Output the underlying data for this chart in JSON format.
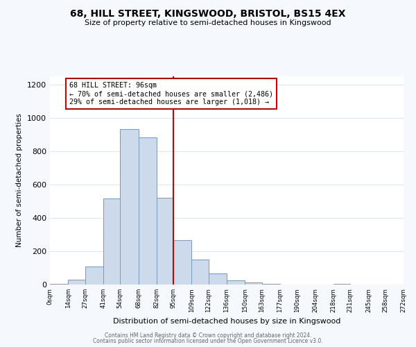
{
  "title": "68, HILL STREET, KINGSWOOD, BRISTOL, BS15 4EX",
  "subtitle": "Size of property relative to semi-detached houses in Kingswood",
  "xlabel": "Distribution of semi-detached houses by size in Kingswood",
  "ylabel": "Number of semi-detached properties",
  "bin_labels": [
    "0sqm",
    "14sqm",
    "27sqm",
    "41sqm",
    "54sqm",
    "68sqm",
    "82sqm",
    "95sqm",
    "109sqm",
    "122sqm",
    "136sqm",
    "150sqm",
    "163sqm",
    "177sqm",
    "190sqm",
    "204sqm",
    "218sqm",
    "231sqm",
    "245sqm",
    "258sqm",
    "272sqm"
  ],
  "bin_edges": [
    0,
    14,
    27,
    41,
    54,
    68,
    82,
    95,
    109,
    122,
    136,
    150,
    163,
    177,
    190,
    204,
    218,
    231,
    245,
    258,
    272
  ],
  "bar_heights": [
    5,
    30,
    110,
    515,
    935,
    885,
    520,
    265,
    150,
    68,
    27,
    12,
    5,
    0,
    0,
    0,
    5,
    0,
    0,
    0
  ],
  "bar_color": "#ccdaeb",
  "bar_edgecolor": "#7799bb",
  "vline_x": 95,
  "vline_color": "#cc0000",
  "annotation_title": "68 HILL STREET: 96sqm",
  "annotation_line1": "← 70% of semi-detached houses are smaller (2,486)",
  "annotation_line2": "29% of semi-detached houses are larger (1,018) →",
  "annotation_box_color": "#cc0000",
  "ylim": [
    0,
    1250
  ],
  "yticks": [
    0,
    200,
    400,
    600,
    800,
    1000,
    1200
  ],
  "footer1": "Contains HM Land Registry data © Crown copyright and database right 2024.",
  "footer2": "Contains public sector information licensed under the Open Government Licence v3.0.",
  "bg_color": "#f5f8fc",
  "plot_bg_color": "#ffffff",
  "grid_color": "#dde5ef"
}
